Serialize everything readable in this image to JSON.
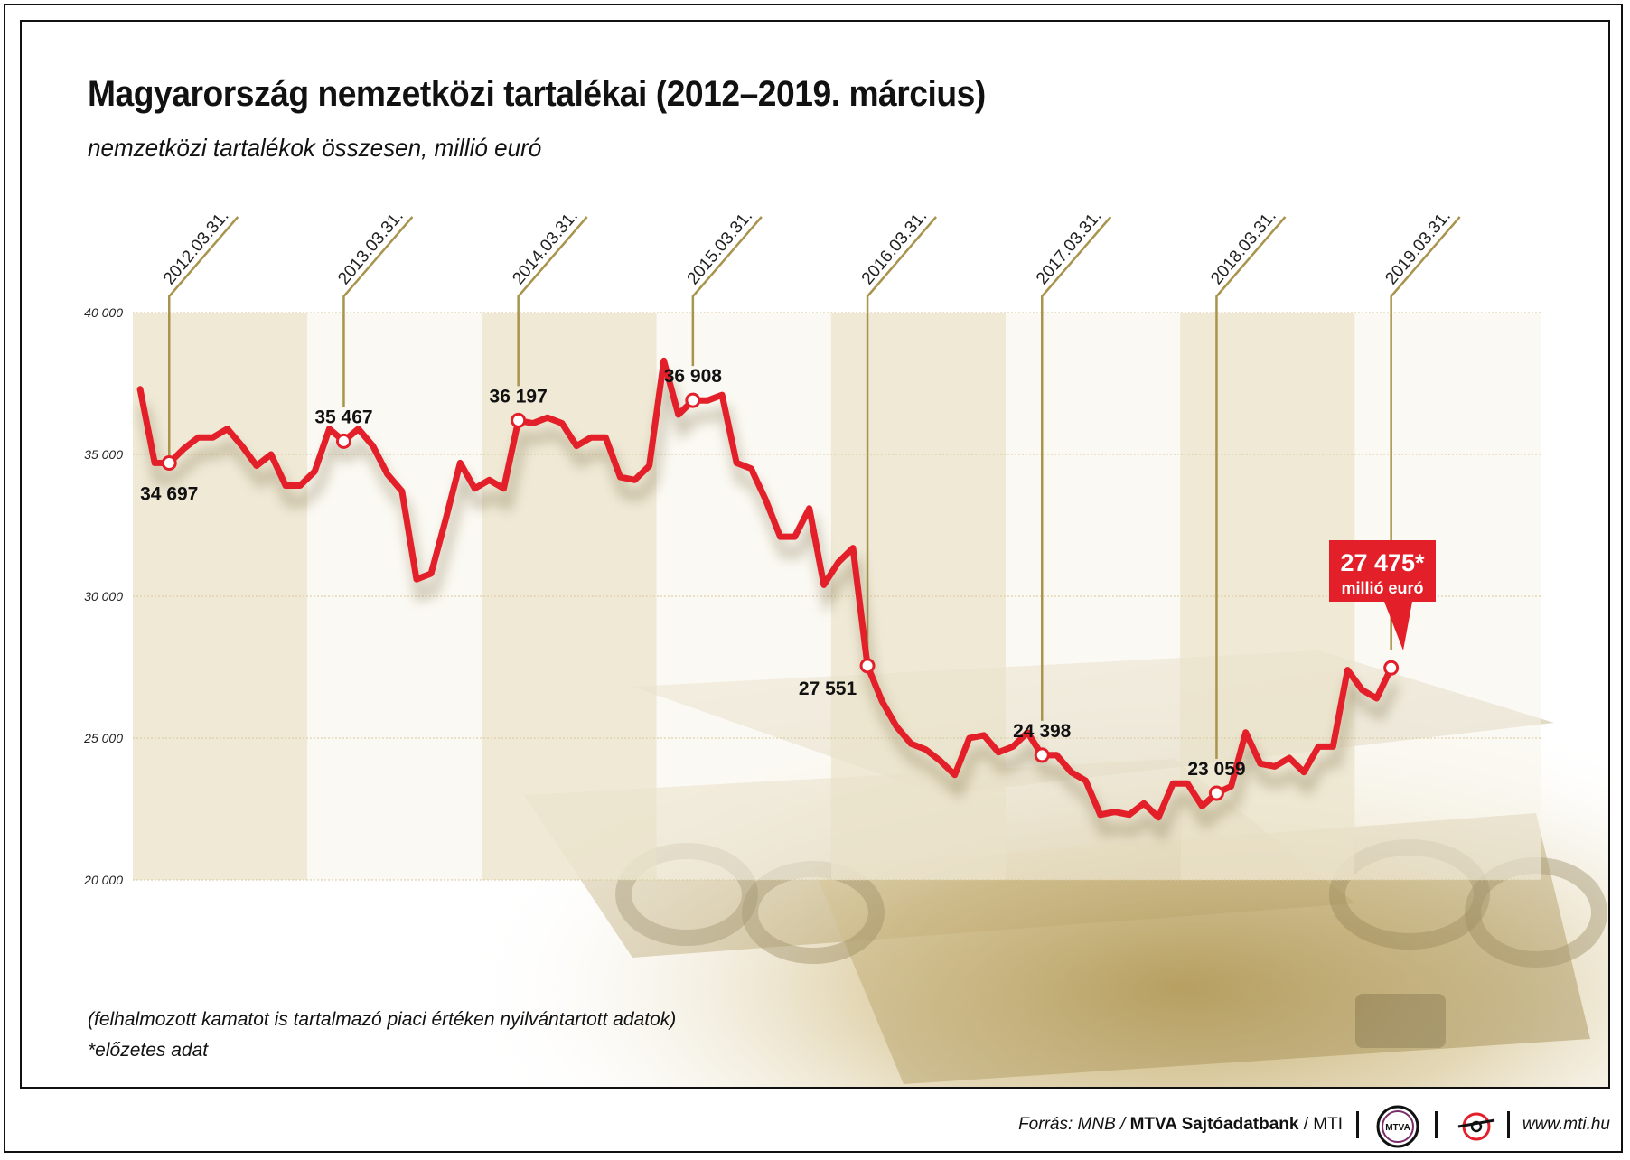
{
  "header": {
    "title": "Magyarország nemzetközi tartalékai (2012–2019. március)",
    "subtitle": "nemzetközi tartalékok összesen, millió euró"
  },
  "notes": {
    "note1": "(felhalmozott kamatot is tartalmazó piaci értéken nyilvántartott adatok)",
    "note2": "*előzetes adat"
  },
  "footer": {
    "source_prefix": "Forrás: MNB / ",
    "source_bold": "MTVA Sajtóadatbank",
    "source_suffix": " / MTI",
    "website": "www.mti.hu",
    "mtva_logo_text": "MTVA"
  },
  "callout": {
    "value": "27 475*",
    "unit": "millió euró"
  },
  "colors": {
    "line": "#e3202a",
    "leader": "#a8944d",
    "band": "#ece5cf",
    "grid": "#d8c89a",
    "callout_bg": "#e3202a"
  },
  "chart_data": {
    "type": "line",
    "title": "Magyarország nemzetközi tartalékai (2012–2019. március)",
    "ylabel": "nemzetközi tartalékok összesen, millió euró",
    "ylim": [
      20000,
      40000
    ],
    "yticks": [
      20000,
      25000,
      30000,
      35000,
      40000
    ],
    "ytick_labels": [
      "20 000",
      "25 000",
      "30 000",
      "35 000",
      "40 000"
    ],
    "x_start": "2012-01",
    "x_end": "2019-03",
    "grid": true,
    "year_bands": [
      "2012",
      "2013",
      "2014",
      "2015",
      "2016",
      "2017",
      "2018",
      "2019"
    ],
    "series": [
      {
        "values": [
          [
            "2012-01",
            37300
          ],
          [
            "2012-02",
            34700
          ],
          [
            "2012-03",
            34697
          ],
          [
            "2012-04",
            35200
          ],
          [
            "2012-05",
            35600
          ],
          [
            "2012-06",
            35600
          ],
          [
            "2012-07",
            35900
          ],
          [
            "2012-08",
            35300
          ],
          [
            "2012-09",
            34600
          ],
          [
            "2012-10",
            35000
          ],
          [
            "2012-11",
            33900
          ],
          [
            "2012-12",
            33900
          ],
          [
            "2013-01",
            34400
          ],
          [
            "2013-02",
            35900
          ],
          [
            "2013-03",
            35467
          ],
          [
            "2013-04",
            35900
          ],
          [
            "2013-05",
            35300
          ],
          [
            "2013-06",
            34300
          ],
          [
            "2013-07",
            33700
          ],
          [
            "2013-08",
            30600
          ],
          [
            "2013-09",
            30800
          ],
          [
            "2013-10",
            32700
          ],
          [
            "2013-11",
            34700
          ],
          [
            "2013-12",
            33800
          ],
          [
            "2014-01",
            34100
          ],
          [
            "2014-02",
            33800
          ],
          [
            "2014-03",
            36197
          ],
          [
            "2014-04",
            36100
          ],
          [
            "2014-05",
            36300
          ],
          [
            "2014-06",
            36100
          ],
          [
            "2014-07",
            35300
          ],
          [
            "2014-08",
            35600
          ],
          [
            "2014-09",
            35600
          ],
          [
            "2014-10",
            34200
          ],
          [
            "2014-11",
            34100
          ],
          [
            "2014-12",
            34600
          ],
          [
            "2015-01",
            38300
          ],
          [
            "2015-02",
            36400
          ],
          [
            "2015-03",
            36908
          ],
          [
            "2015-04",
            36900
          ],
          [
            "2015-05",
            37100
          ],
          [
            "2015-06",
            34700
          ],
          [
            "2015-07",
            34500
          ],
          [
            "2015-08",
            33400
          ],
          [
            "2015-09",
            32100
          ],
          [
            "2015-10",
            32100
          ],
          [
            "2015-11",
            33100
          ],
          [
            "2015-12",
            30400
          ],
          [
            "2016-01",
            31200
          ],
          [
            "2016-02",
            31700
          ],
          [
            "2016-03",
            27551
          ],
          [
            "2016-04",
            26300
          ],
          [
            "2016-05",
            25400
          ],
          [
            "2016-06",
            24800
          ],
          [
            "2016-07",
            24600
          ],
          [
            "2016-08",
            24200
          ],
          [
            "2016-09",
            23700
          ],
          [
            "2016-10",
            25000
          ],
          [
            "2016-11",
            25100
          ],
          [
            "2016-12",
            24500
          ],
          [
            "2017-01",
            24700
          ],
          [
            "2017-02",
            25200
          ],
          [
            "2017-03",
            24398
          ],
          [
            "2017-04",
            24400
          ],
          [
            "2017-05",
            23800
          ],
          [
            "2017-06",
            23500
          ],
          [
            "2017-07",
            22300
          ],
          [
            "2017-08",
            22400
          ],
          [
            "2017-09",
            22300
          ],
          [
            "2017-10",
            22700
          ],
          [
            "2017-11",
            22200
          ],
          [
            "2017-12",
            23400
          ],
          [
            "2018-01",
            23400
          ],
          [
            "2018-02",
            22600
          ],
          [
            "2018-03",
            23059
          ],
          [
            "2018-04",
            23300
          ],
          [
            "2018-05",
            25200
          ],
          [
            "2018-06",
            24100
          ],
          [
            "2018-07",
            24000
          ],
          [
            "2018-08",
            24300
          ],
          [
            "2018-09",
            23800
          ],
          [
            "2018-10",
            24700
          ],
          [
            "2018-11",
            24700
          ],
          [
            "2018-12",
            27400
          ],
          [
            "2019-01",
            26700
          ],
          [
            "2019-02",
            26400
          ],
          [
            "2019-03",
            27475
          ]
        ]
      }
    ],
    "annotations": [
      {
        "date": "2012.03.31.",
        "x": "2012-03",
        "value": 34697,
        "label": "34 697",
        "label_pos": "below"
      },
      {
        "date": "2013.03.31.",
        "x": "2013-03",
        "value": 35467,
        "label": "35 467",
        "label_pos": "above"
      },
      {
        "date": "2014.03.31.",
        "x": "2014-03",
        "value": 36197,
        "label": "36 197",
        "label_pos": "above"
      },
      {
        "date": "2015.03.31.",
        "x": "2015-03",
        "value": 36908,
        "label": "36 908",
        "label_pos": "above"
      },
      {
        "date": "2016.03.31.",
        "x": "2016-03",
        "value": 27551,
        "label": "27 551",
        "label_pos": "left"
      },
      {
        "date": "2017.03.31.",
        "x": "2017-03",
        "value": 24398,
        "label": "24 398",
        "label_pos": "above"
      },
      {
        "date": "2018.03.31.",
        "x": "2018-03",
        "value": 23059,
        "label": "23 059",
        "label_pos": "above"
      },
      {
        "date": "2019.03.31.",
        "x": "2019-03",
        "value": 27475,
        "label": "27 475*",
        "label_pos": "callout"
      }
    ]
  }
}
